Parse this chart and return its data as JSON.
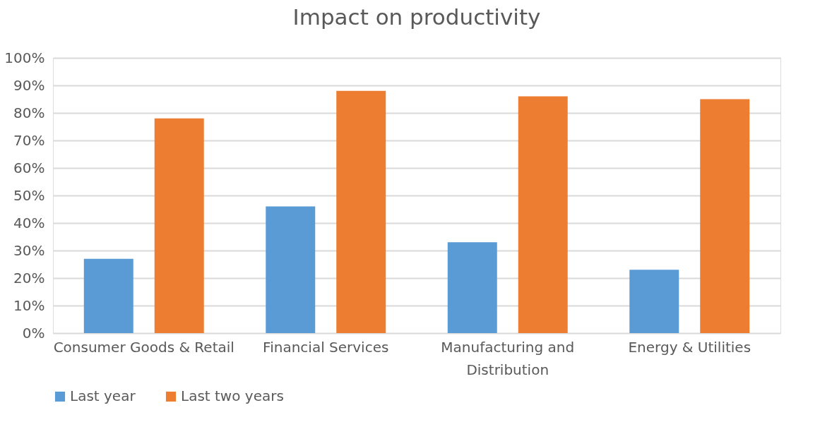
{
  "chart_data": {
    "type": "bar",
    "title": "Impact on productivity",
    "categories": [
      "Consumer Goods & Retail",
      "Financial Services",
      "Manufacturing and Distribution",
      "Energy & Utilities"
    ],
    "series": [
      {
        "name": "Last year",
        "color": "#5b9bd5",
        "values": [
          27,
          46,
          33,
          23
        ]
      },
      {
        "name": "Last two years",
        "color": "#ed7d31",
        "values": [
          78,
          88,
          86,
          85
        ]
      }
    ],
    "ylim": [
      0,
      100
    ],
    "yticks": [
      {
        "value": 0,
        "label": "0%"
      },
      {
        "value": 10,
        "label": "10%"
      },
      {
        "value": 20,
        "label": "20%"
      },
      {
        "value": 30,
        "label": "30%"
      },
      {
        "value": 40,
        "label": "40%"
      },
      {
        "value": 50,
        "label": "50%"
      },
      {
        "value": 60,
        "label": "60%"
      },
      {
        "value": 70,
        "label": "70%"
      },
      {
        "value": 80,
        "label": "80%"
      },
      {
        "value": 90,
        "label": "90%"
      },
      {
        "value": 100,
        "label": "100%"
      }
    ],
    "grid": "y",
    "legend": "bottom"
  }
}
